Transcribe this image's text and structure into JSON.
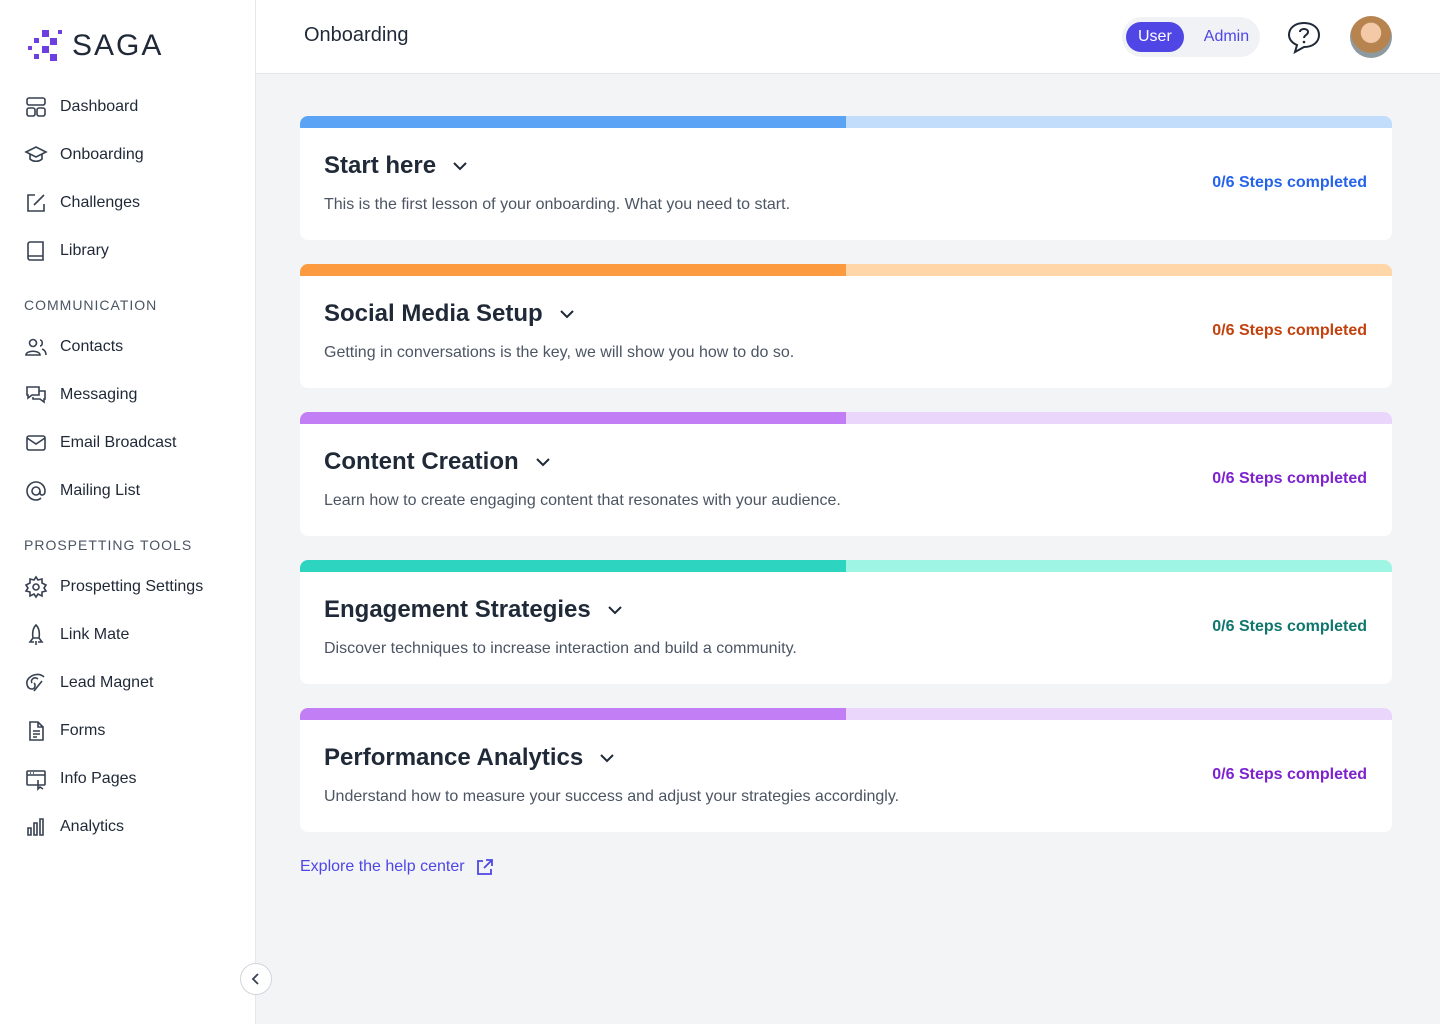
{
  "brand": "SAGA",
  "nav": {
    "main": [
      "Dashboard",
      "Onboarding",
      "Challenges",
      "Library"
    ],
    "sections": [
      {
        "heading": "COMMUNICATION",
        "items": [
          "Contacts",
          "Messaging",
          "Email Broadcast",
          "Mailing List"
        ]
      },
      {
        "heading": "PROSPETTING TOOLS",
        "items": [
          "Prospetting Settings",
          "Link Mate",
          "Lead Magnet",
          "Forms",
          "Info Pages",
          "Analytics"
        ]
      }
    ]
  },
  "header": {
    "title": "Onboarding",
    "toggle": [
      "User",
      "Admin"
    ]
  },
  "lessons": [
    {
      "title": "Start here",
      "description": "This is the first lesson of your onboarding. What you need to start.",
      "progress": "0/6 Steps completed"
    },
    {
      "title": "Social Media Setup",
      "description": "Getting in conversations is the key, we will show you how to do so.",
      "progress": "0/6 Steps completed"
    },
    {
      "title": "Content Creation",
      "description": "Learn how to create engaging content that resonates with your audience.",
      "progress": "0/6 Steps completed"
    },
    {
      "title": "Engagement Strategies",
      "description": "Discover techniques to increase interaction and build a community.",
      "progress": "0/6 Steps completed"
    },
    {
      "title": "Performance Analytics",
      "description": "Understand how to measure your success and adjust your strategies accordingly.",
      "progress": "0/6 Steps completed"
    }
  ],
  "help_link": "Explore the help center"
}
